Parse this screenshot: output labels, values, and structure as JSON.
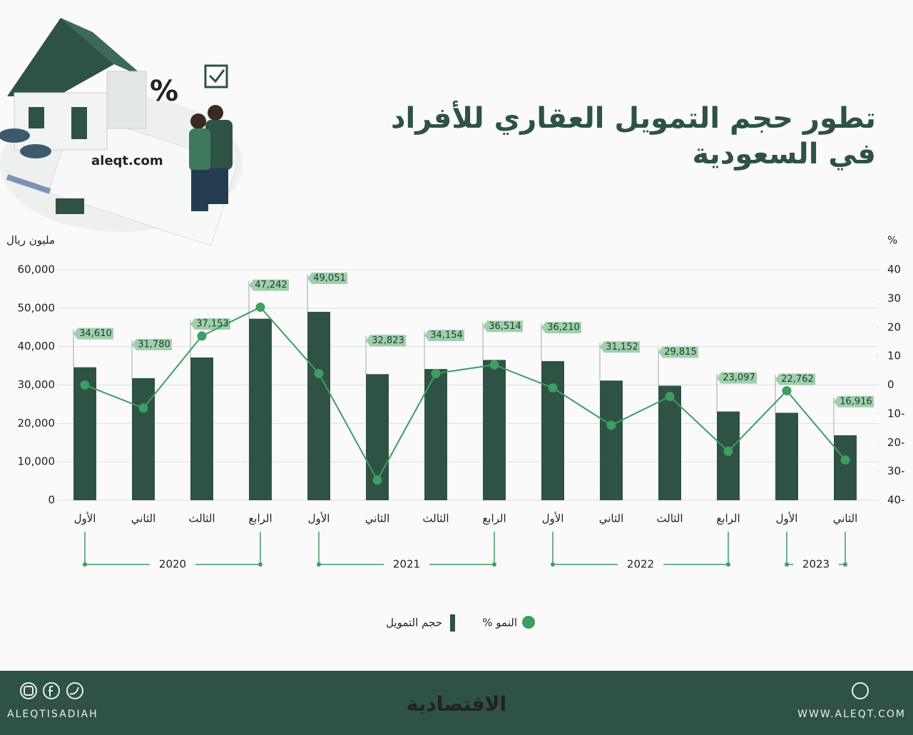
{
  "chart_data": {
    "type": "bar",
    "title_lines": [
      "تطور حجم التمويل العقاري للأفراد",
      "في السعودية"
    ],
    "y_label": "مليون ريال",
    "y2_label": "%",
    "categories": [
      "الأول",
      "الثاني",
      "الثالث",
      "الرابع",
      "الأول",
      "الثاني",
      "الثالث",
      "الرابع",
      "الأول",
      "الثاني",
      "الثالث",
      "الرابع",
      "الأول",
      "الثاني"
    ],
    "year_groups": [
      "2020",
      "2021",
      "2022",
      "2023"
    ],
    "series": [
      {
        "name": "حجم التمويل",
        "type": "bar",
        "axis": "y",
        "color": "#2e5243",
        "values": [
          34610,
          31780,
          37153,
          47242,
          49051,
          32823,
          34154,
          36514,
          36210,
          31152,
          29815,
          23097,
          22762,
          16916
        ],
        "value_labels": [
          "34,610",
          "31,780",
          "37,153",
          "47,242",
          "49,051",
          "32,823",
          "34,154",
          "36,514",
          "36,210",
          "31,152",
          "29,815",
          "23,097",
          "22,762",
          "16,916"
        ]
      },
      {
        "name": "النمو %",
        "type": "line",
        "axis": "y2",
        "color": "#3d9e60",
        "values": [
          0,
          -8,
          17,
          27,
          4,
          -33,
          4,
          7,
          -1,
          -14,
          -4,
          -23,
          -2,
          -26
        ]
      }
    ],
    "ylim": [
      0,
      60000
    ],
    "yticks": [
      0,
      {
        "value": 10000,
        "label": "10,000"
      },
      {
        "value": 20000,
        "label": "20,000"
      },
      {
        "value": 30000,
        "label": "30,000"
      },
      {
        "value": 40000,
        "label": "40,000"
      },
      {
        "value": 50000,
        "label": "50,000"
      },
      {
        "value": 60000,
        "label": "60,000"
      }
    ],
    "y2lim": [
      -40,
      40
    ],
    "y2ticks": [
      {
        "value": -40,
        "label": "40-"
      },
      {
        "value": -30,
        "label": "30-"
      },
      {
        "value": -20,
        "label": "20-"
      },
      {
        "value": -10,
        "label": "10-"
      },
      0,
      10,
      20,
      30,
      40
    ],
    "grid": true,
    "legend": "bottom"
  },
  "branding": {
    "watermark": "aleqt.com",
    "handle": "ALEQTISADIAH",
    "logo": "الاقتصادية",
    "site": "WWW.ALEQT.COM"
  }
}
